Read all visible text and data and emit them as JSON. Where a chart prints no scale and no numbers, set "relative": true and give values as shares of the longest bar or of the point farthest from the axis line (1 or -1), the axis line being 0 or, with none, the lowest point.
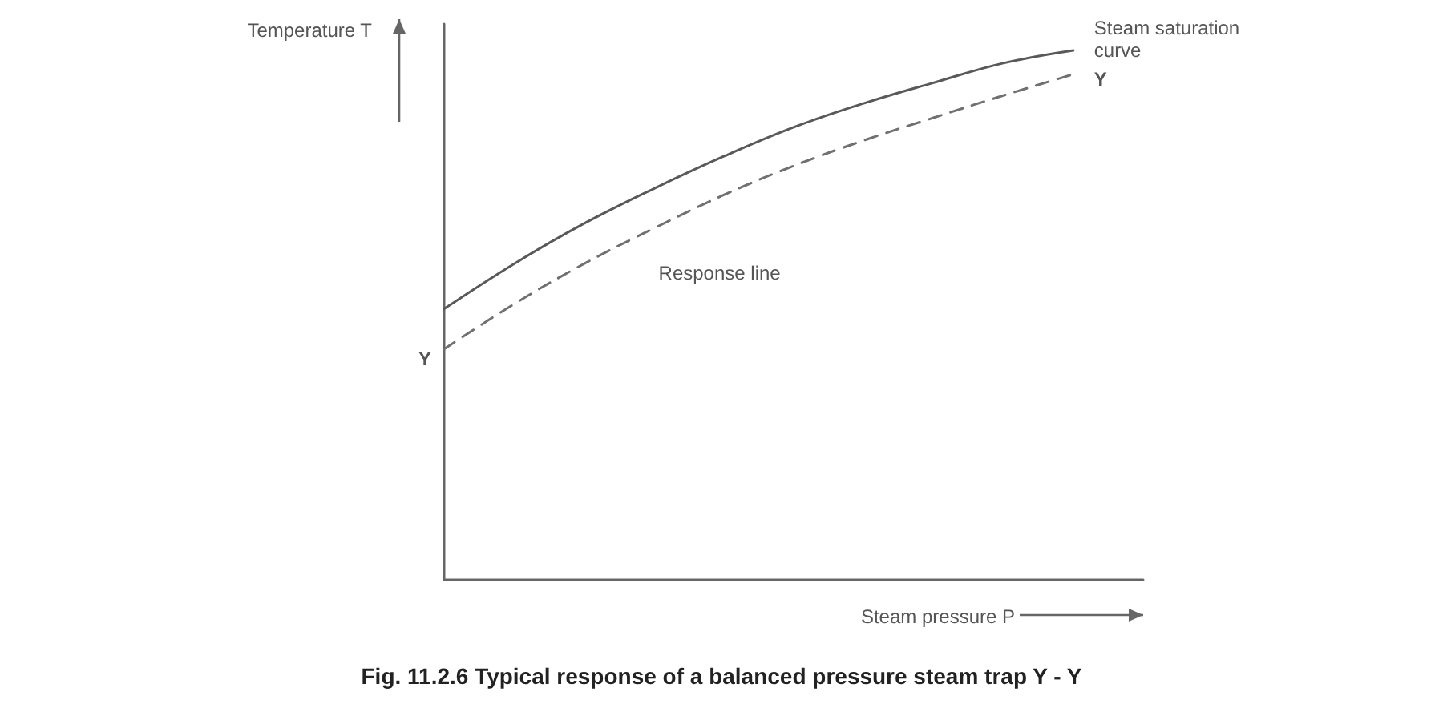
{
  "chart_data": {
    "type": "line",
    "title": "Fig. 11.2.6 Typical response of a balanced pressure steam trap Y - Y",
    "xlabel": "Steam pressure P",
    "ylabel": "Temperature T",
    "relative": true,
    "grid": false,
    "legend": false,
    "marker": "none",
    "categories": [
      null,
      null,
      null,
      null,
      null,
      null,
      null,
      null,
      null,
      null,
      null
    ],
    "series": [
      {
        "name": "Steam saturation curve",
        "color": "#595959",
        "line_style": "solid",
        "values": [
          0.512,
          0.597,
          0.673,
          0.739,
          0.8,
          0.855,
          0.9,
          0.939,
          0.976,
          1,
          null
        ]
      },
      {
        "name": "Response line",
        "color": "#707070",
        "line_style": "dashed",
        "values": [
          0.436,
          0.521,
          0.597,
          0.664,
          0.727,
          0.782,
          0.83,
          0.873,
          0.915,
          0.955,
          null
        ]
      }
    ],
    "annotations": [
      "Y",
      "Y"
    ]
  }
}
